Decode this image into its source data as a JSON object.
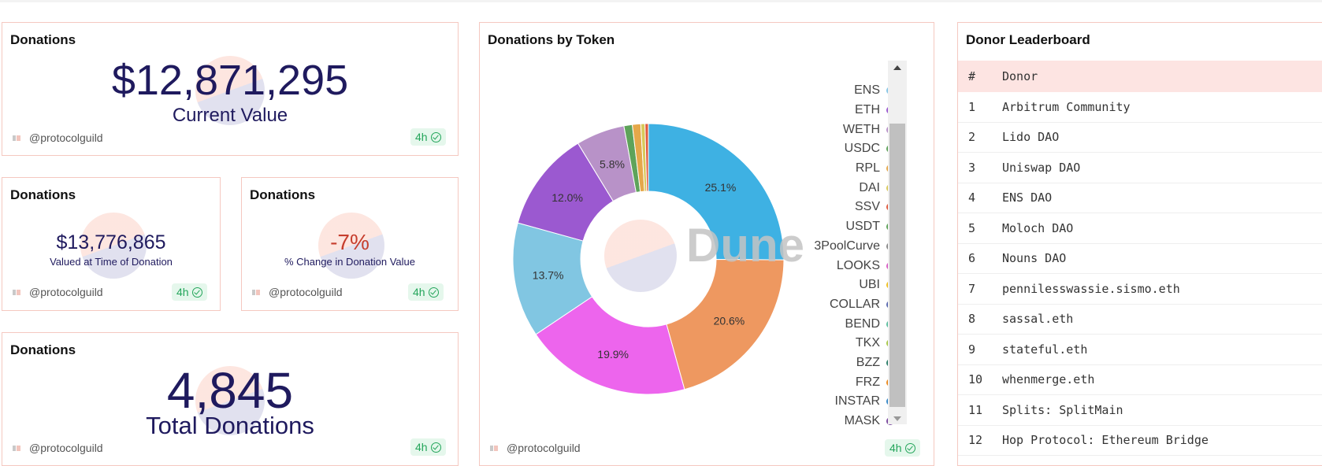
{
  "card_current_value": {
    "title": "Donations",
    "value": "$12,871,295",
    "label": "Current Value",
    "author": "@protocolguild",
    "refresh": "4h"
  },
  "card_time_of_donation": {
    "title": "Donations",
    "value": "$13,776,865",
    "label": "Valued at Time of Donation",
    "author": "@protocolguild",
    "refresh": "4h"
  },
  "card_change": {
    "title": "Donations",
    "value": "-7%",
    "value_color": "#c63e2e",
    "label": "% Change in Donation Value",
    "author": "@protocolguild",
    "refresh": "4h"
  },
  "card_total": {
    "title": "Donations",
    "value": "4,845",
    "label": "Total Donations",
    "author": "@protocolguild",
    "refresh": "4h"
  },
  "donut_card": {
    "title": "Donations by Token",
    "watermark": "Dune",
    "author": "@protocolguild",
    "refresh": "4h"
  },
  "chart_data": {
    "type": "pie",
    "title": "Donations by Token",
    "donut": true,
    "legend_position": "right",
    "slices": [
      {
        "label": "ENS",
        "value": 25.1,
        "color": "#3eb1e3",
        "show_label": true
      },
      {
        "label": "ETH",
        "value": 20.6,
        "color": "#ee9860",
        "show_label": true
      },
      {
        "label": "WETH",
        "value": 19.9,
        "color": "#ed65ed",
        "show_label": true
      },
      {
        "label": "USDC",
        "value": 13.7,
        "color": "#81c6e2",
        "show_label": true
      },
      {
        "label": "RPL",
        "value": 12.0,
        "color": "#9b59d0",
        "show_label": true
      },
      {
        "label": "DAI",
        "value": 5.8,
        "color": "#b892c8",
        "show_label": true
      },
      {
        "label": "SSV",
        "value": 1.0,
        "color": "#5ea35a",
        "show_label": false
      },
      {
        "label": "USDT",
        "value": 1.0,
        "color": "#e5a84a",
        "show_label": false
      },
      {
        "label": "3PoolCurve",
        "value": 0.5,
        "color": "#d9c95a",
        "show_label": false
      },
      {
        "label": "LOOKS",
        "value": 0.4,
        "color": "#e05a3e",
        "show_label": false
      }
    ],
    "legend": [
      {
        "label": "ENS",
        "color": "#85c5e6"
      },
      {
        "label": "ETH",
        "color": "#9b59d0"
      },
      {
        "label": "WETH",
        "color": "#b892c8"
      },
      {
        "label": "USDC",
        "color": "#5ea35a"
      },
      {
        "label": "RPL",
        "color": "#e5a84a"
      },
      {
        "label": "DAI",
        "color": "#d9c95a"
      },
      {
        "label": "SSV",
        "color": "#e05a3e"
      },
      {
        "label": "USDT",
        "color": "#5ea35a"
      },
      {
        "label": "3PoolCurve",
        "color": "#8a8a8a"
      },
      {
        "label": "LOOKS",
        "color": "#d85fc5"
      },
      {
        "label": "UBI",
        "color": "#f0c020"
      },
      {
        "label": "COLLAR",
        "color": "#5b6ab0"
      },
      {
        "label": "BEND",
        "color": "#5dbfa0"
      },
      {
        "label": "TKX",
        "color": "#a8c84a"
      },
      {
        "label": "BZZ",
        "color": "#2e7f6a"
      },
      {
        "label": "FRZ",
        "color": "#ea8a20"
      },
      {
        "label": "INSTAR",
        "color": "#3a8ac8"
      },
      {
        "label": "MASK",
        "color": "#7b4aa0"
      }
    ]
  },
  "leaderboard": {
    "title": "Donor Leaderboard",
    "columns": [
      "#",
      "Donor"
    ],
    "rows": [
      [
        "1",
        "Arbitrum Community"
      ],
      [
        "2",
        "Lido DAO"
      ],
      [
        "3",
        "Uniswap DAO"
      ],
      [
        "4",
        "ENS DAO"
      ],
      [
        "5",
        "Moloch DAO"
      ],
      [
        "6",
        "Nouns DAO"
      ],
      [
        "7",
        "pennilesswassie.sismo.eth"
      ],
      [
        "8",
        "sassal.eth"
      ],
      [
        "9",
        "stateful.eth"
      ],
      [
        "10",
        "whenmerge.eth"
      ],
      [
        "11",
        "Splits: SplitMain"
      ],
      [
        "12",
        "Hop Protocol: Ethereum Bridge"
      ]
    ]
  }
}
